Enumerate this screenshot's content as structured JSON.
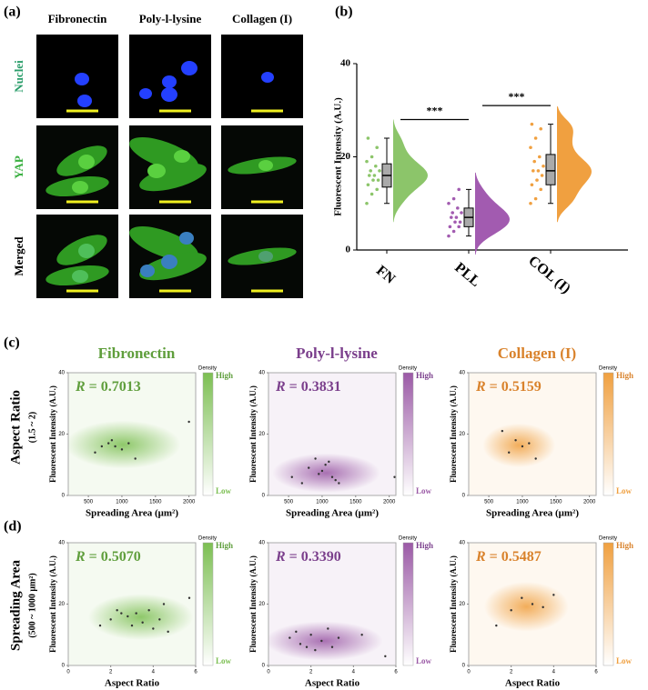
{
  "panel_labels": [
    "(a)",
    "(b)",
    "(c)",
    "(d)"
  ],
  "microscopy": {
    "column_titles": [
      "Fibronectin",
      "Poly-l-lysine",
      "Collagen (I)"
    ],
    "row_titles": [
      "Nuclei",
      "YAP",
      "Merged"
    ]
  },
  "row_labels": [
    {
      "text": "Aspect Ratio",
      "sub": "(1.5 ~ 2)"
    },
    {
      "text": "Spreading Area",
      "sub": "(500 ~ 1000 μm²)"
    }
  ],
  "chart_data": [
    {
      "type": "raincloud",
      "y_label": "Fluorescent Intensity (A.U.)",
      "categories": [
        "FN",
        "PLL",
        "COL (I)"
      ],
      "colors": [
        "#8cc56a",
        "#a25bb0",
        "#f0a040"
      ],
      "boxes": [
        {
          "whislo": 10,
          "q1": 13.5,
          "med": 16,
          "q3": 18.5,
          "whishi": 24
        },
        {
          "whislo": 3,
          "q1": 5,
          "med": 7,
          "q3": 9,
          "whishi": 13
        },
        {
          "whislo": 10,
          "q1": 14,
          "med": 17,
          "q3": 20.5,
          "whishi": 27
        }
      ],
      "points": [
        [
          10,
          12,
          13,
          14,
          15,
          15,
          16,
          16,
          17,
          17,
          18,
          19,
          20,
          22,
          24
        ],
        [
          3,
          4,
          5,
          5,
          6,
          6,
          7,
          7,
          8,
          8,
          9,
          10,
          11,
          13
        ],
        [
          10,
          11,
          13,
          14,
          15,
          16,
          17,
          17,
          18,
          19,
          20,
          22,
          24,
          26,
          27
        ]
      ],
      "significance": [
        "***",
        "***"
      ],
      "ylim": [
        0,
        40
      ],
      "yticks": [
        0,
        20,
        40
      ]
    },
    {
      "type": "density",
      "title": "Fibronectin",
      "color": "#7cbf52",
      "text_color": "#5f9e3c",
      "stat_name": "R",
      "stat_text": " = 0.7013",
      "x_label": "Spreading Area (μm²)",
      "y_label": "Fluorescent Intensity (A.U.)",
      "xlim": [
        200,
        2100
      ],
      "xticks": [
        500,
        1000,
        1500,
        2000
      ],
      "ylim": [
        0,
        40
      ],
      "yticks": [
        0,
        20,
        40
      ],
      "colorbar_title": "Density",
      "colorbar_high": "High",
      "colorbar_low": "Low",
      "x": [
        600,
        700,
        800,
        850,
        900,
        1000,
        1100,
        1200,
        2000
      ],
      "y": [
        14,
        16,
        17,
        18,
        16,
        15,
        17,
        12,
        24
      ]
    },
    {
      "type": "density",
      "title": "Poly-l-lysine",
      "color": "#9b5aa6",
      "text_color": "#7b3f8c",
      "stat_name": "R",
      "stat_text": " = 0.3831",
      "x_label": "Spreading Area (μm²)",
      "y_label": "Fluorescent Intensity (A.U.)",
      "xlim": [
        200,
        2100
      ],
      "xticks": [
        500,
        1000,
        1500,
        2000
      ],
      "ylim": [
        0,
        40
      ],
      "yticks": [
        0,
        20,
        40
      ],
      "colorbar_title": "Density",
      "colorbar_high": "High",
      "colorbar_low": "Low",
      "x": [
        550,
        700,
        800,
        900,
        950,
        1000,
        1050,
        1100,
        1150,
        1200,
        1250,
        2080
      ],
      "y": [
        6,
        4,
        9,
        12,
        7,
        8,
        10,
        11,
        6,
        5,
        4,
        6
      ]
    },
    {
      "type": "density",
      "title": "Collagen (I)",
      "color": "#f0a040",
      "text_color": "#d9822b",
      "stat_name": "R",
      "stat_text": " = 0.5159",
      "x_label": "Spreading Area (μm²)",
      "y_label": "Fluorescent Intensity (A.U.)",
      "xlim": [
        200,
        2100
      ],
      "xticks": [
        500,
        1000,
        1500,
        2000
      ],
      "ylim": [
        0,
        40
      ],
      "yticks": [
        0,
        20,
        40
      ],
      "colorbar_title": "Density",
      "colorbar_high": "High",
      "colorbar_low": "Low",
      "x": [
        700,
        800,
        900,
        1000,
        1100,
        1200
      ],
      "y": [
        21,
        14,
        18,
        16,
        17,
        12
      ]
    },
    {
      "type": "density",
      "color": "#7cbf52",
      "text_color": "#5f9e3c",
      "stat_name": "R",
      "stat_text": " = 0.5070",
      "x_label": "Aspect Ratio",
      "y_label": "Fluorescent Intensity (A.U.)",
      "xlim": [
        0,
        6
      ],
      "xticks": [
        0,
        2,
        4,
        6
      ],
      "ylim": [
        0,
        40
      ],
      "yticks": [
        0,
        20,
        40
      ],
      "colorbar_title": "Density",
      "colorbar_high": "High",
      "colorbar_low": "Low",
      "x": [
        1.5,
        2,
        2.3,
        2.5,
        2.8,
        3,
        3.2,
        3.5,
        3.8,
        4,
        4.3,
        4.5,
        4.7,
        5.7
      ],
      "y": [
        13,
        15,
        18,
        17,
        16,
        13,
        17,
        14,
        18,
        12,
        15,
        20,
        11,
        22
      ]
    },
    {
      "type": "density",
      "color": "#9b5aa6",
      "text_color": "#7b3f8c",
      "stat_name": "R",
      "stat_text": " = 0.3390",
      "x_label": "Aspect Ratio",
      "y_label": "Fluorescent Intensity (A.U.)",
      "xlim": [
        0,
        6
      ],
      "xticks": [
        0,
        2,
        4,
        6
      ],
      "ylim": [
        0,
        40
      ],
      "yticks": [
        0,
        20,
        40
      ],
      "colorbar_title": "Density",
      "colorbar_high": "High",
      "colorbar_low": "Low",
      "x": [
        1,
        1.3,
        1.5,
        1.8,
        2,
        2.2,
        2.5,
        2.8,
        3,
        3.3,
        4.4,
        5.5
      ],
      "y": [
        9,
        11,
        7,
        6,
        10,
        5,
        8,
        12,
        6,
        9,
        10,
        3
      ]
    },
    {
      "type": "density",
      "color": "#f0a040",
      "text_color": "#d9822b",
      "stat_name": "R",
      "stat_text": " = 0.5487",
      "x_label": "Aspect Ratio",
      "y_label": "Fluorescent Intensity (A.U.)",
      "xlim": [
        0,
        6
      ],
      "xticks": [
        0,
        2,
        4,
        6
      ],
      "ylim": [
        0,
        40
      ],
      "yticks": [
        0,
        20,
        40
      ],
      "colorbar_title": "Density",
      "colorbar_high": "High",
      "colorbar_low": "Low",
      "x": [
        1.3,
        2,
        2.5,
        3,
        3.5,
        4
      ],
      "y": [
        13,
        18,
        22,
        20,
        19,
        23
      ]
    }
  ]
}
